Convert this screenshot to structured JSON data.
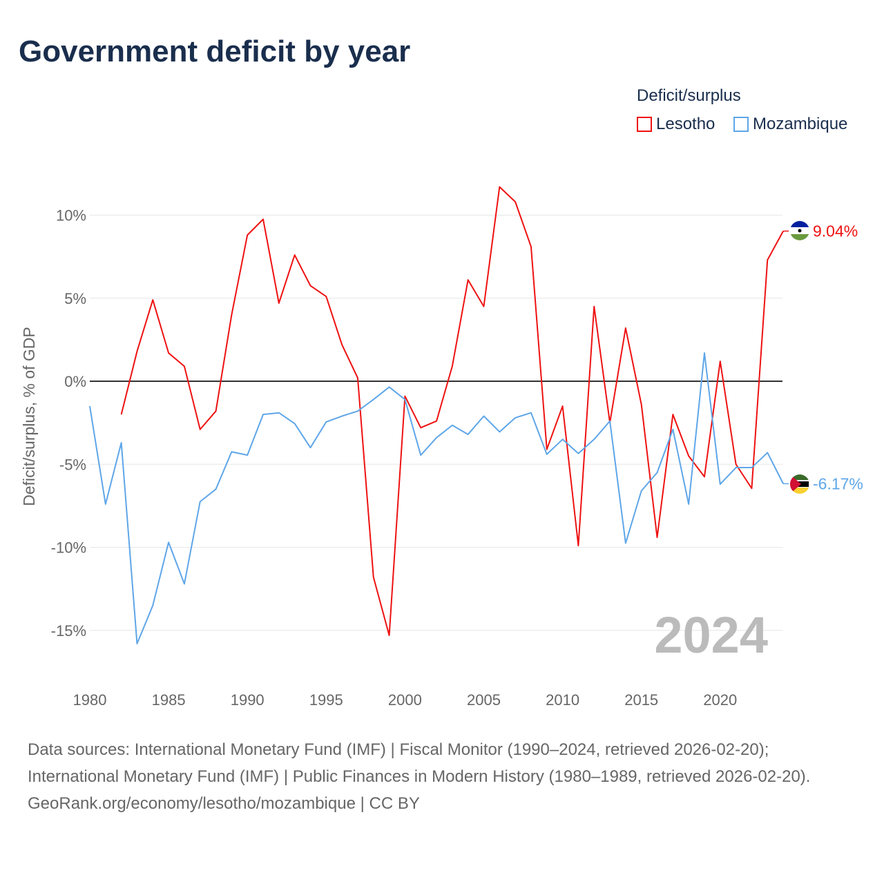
{
  "chart_data": {
    "type": "line",
    "title": "Government deficit by year",
    "ylabel": "Deficit/surplus, % of GDP",
    "xlabel": "",
    "xlim": [
      1980,
      2024
    ],
    "ylim": [
      -17,
      12
    ],
    "x_ticks": [
      1980,
      1985,
      1990,
      1995,
      2000,
      2005,
      2010,
      2015,
      2020
    ],
    "y_ticks": [
      10,
      5,
      0,
      -5,
      -10,
      -15
    ],
    "y_tick_labels": [
      "10%",
      "5%",
      "0%",
      "-5%",
      "-10%",
      "-15%"
    ],
    "legend_title": "Deficit/surplus",
    "legend_position": "top-right",
    "year_watermark": "2024",
    "series": [
      {
        "name": "Lesotho",
        "color": "#ee1111",
        "end_label": "9.04%",
        "start_year": 1982,
        "values": [
          -2.0,
          1.8,
          4.9,
          1.7,
          0.9,
          -2.9,
          -1.8,
          4.0,
          8.8,
          9.75,
          4.7,
          7.6,
          5.75,
          5.1,
          2.2,
          0.2,
          -11.8,
          -15.3,
          -0.9,
          -2.8,
          -2.4,
          0.9,
          6.1,
          4.5,
          11.7,
          10.8,
          8.1,
          -4.1,
          -1.5,
          -9.9,
          4.5,
          -2.5,
          3.2,
          -1.4,
          -9.4,
          -2.0,
          -4.5,
          -5.75,
          1.2,
          -5.0,
          -6.45,
          7.3,
          9.04
        ]
      },
      {
        "name": "Mozambique",
        "color": "#5ea6e8",
        "end_label": "-6.17%",
        "start_year": 1980,
        "values": [
          -1.5,
          -7.4,
          -3.7,
          -15.8,
          -13.5,
          -9.7,
          -12.2,
          -7.25,
          -6.5,
          -4.25,
          -4.45,
          -2.0,
          -1.9,
          -2.55,
          -4.0,
          -2.45,
          -2.1,
          -1.8,
          -1.1,
          -0.35,
          -1.1,
          -4.45,
          -3.4,
          -2.65,
          -3.2,
          -2.1,
          -3.05,
          -2.2,
          -1.9,
          -4.4,
          -3.5,
          -4.35,
          -3.5,
          -2.4,
          -9.75,
          -6.6,
          -5.5,
          -2.9,
          -7.4,
          1.7,
          -6.2,
          -5.2,
          -5.2,
          -4.3,
          -6.17
        ]
      }
    ]
  },
  "sources": {
    "line1": "Data sources: International Monetary Fund (IMF) | Fiscal Monitor (1990–2024, retrieved 2026-02-20); International Monetary Fund (IMF) | Public Finances in Modern History (1980–1989, retrieved 2026-02-20).",
    "line2": "GeoRank.org/economy/lesotho/mozambique | CC BY"
  }
}
